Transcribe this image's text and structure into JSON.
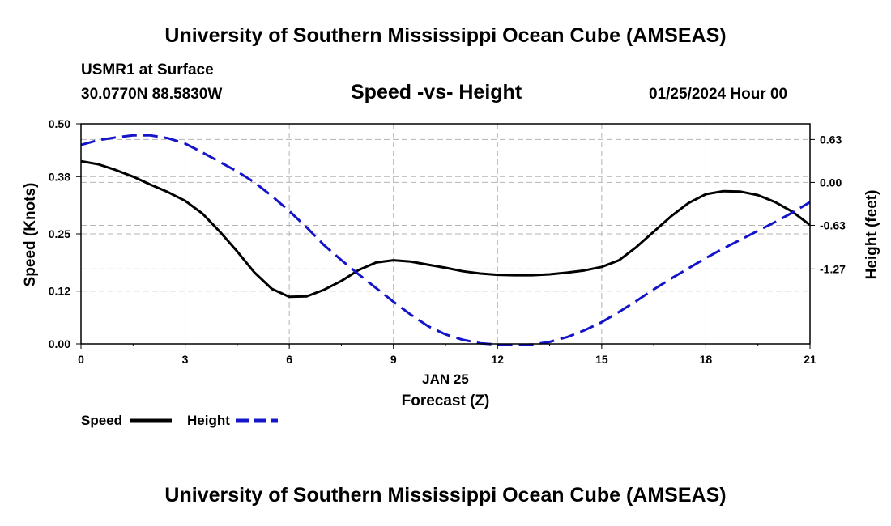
{
  "header": {
    "title": "University of Southern Mississippi Ocean Cube (AMSEAS)",
    "station": "USMR1 at Surface",
    "coords": "30.0770N  88.5830W",
    "subtitle": "Speed -vs- Height",
    "datetime": "01/25/2024 Hour 00"
  },
  "footer": {
    "title": "University of Southern Mississippi Ocean Cube (AMSEAS)"
  },
  "legend": {
    "speed_label": "Speed",
    "height_label": "Height"
  },
  "chart_data": {
    "type": "line",
    "xlabel_date": "JAN 25",
    "xlabel": "Forecast (Z)",
    "ylabel": "Speed (Knots)",
    "y2label": "Height (feet)",
    "xlim": [
      0,
      21
    ],
    "ylim": [
      0,
      0.5
    ],
    "y2lim": [
      -2.37,
      0.86
    ],
    "x_ticks": [
      "0",
      "3",
      "6",
      "9",
      "12",
      "15",
      "18",
      "21"
    ],
    "y_ticks": [
      "0.00",
      "0.12",
      "0.25",
      "0.38",
      "0.50"
    ],
    "y2_ticks": [
      "0.63",
      "0.00",
      "-0.63",
      "-1.27"
    ],
    "y2_tick_values": [
      0.63,
      0.0,
      -0.63,
      -1.27
    ],
    "grid": true,
    "colors": {
      "speed": "#000000",
      "height": "#1414c8",
      "grid": "#b4b4b4"
    },
    "series": [
      {
        "name": "Speed",
        "axis": "left",
        "x": [
          0,
          0.5,
          1,
          1.5,
          2,
          2.5,
          3,
          3.5,
          4,
          4.5,
          5,
          5.5,
          6,
          6.5,
          7,
          7.5,
          8,
          8.5,
          9,
          9.5,
          10,
          10.5,
          11,
          11.5,
          12,
          12.5,
          13,
          13.5,
          14,
          14.5,
          15,
          15.5,
          16,
          16.5,
          17,
          17.5,
          18,
          18.5,
          19,
          19.5,
          20,
          20.5,
          21
        ],
        "values": [
          0.415,
          0.408,
          0.395,
          0.38,
          0.362,
          0.345,
          0.325,
          0.296,
          0.255,
          0.21,
          0.162,
          0.125,
          0.107,
          0.108,
          0.123,
          0.143,
          0.168,
          0.185,
          0.19,
          0.187,
          0.18,
          0.173,
          0.165,
          0.16,
          0.157,
          0.156,
          0.156,
          0.158,
          0.162,
          0.167,
          0.175,
          0.19,
          0.22,
          0.255,
          0.29,
          0.32,
          0.34,
          0.347,
          0.346,
          0.338,
          0.322,
          0.3,
          0.27
        ]
      },
      {
        "name": "Height",
        "axis": "right",
        "x": [
          0,
          0.5,
          1,
          1.5,
          2,
          2.5,
          3,
          3.5,
          4,
          4.5,
          5,
          5.5,
          6,
          6.5,
          7,
          7.5,
          8,
          8.5,
          9,
          9.5,
          10,
          10.5,
          11,
          11.5,
          12,
          12.5,
          13,
          13.5,
          14,
          14.5,
          15,
          15.5,
          16,
          16.5,
          17,
          17.5,
          18,
          18.5,
          19,
          19.5,
          20,
          20.5,
          21
        ],
        "values": [
          0.55,
          0.62,
          0.66,
          0.69,
          0.69,
          0.65,
          0.57,
          0.44,
          0.3,
          0.16,
          0.0,
          -0.2,
          -0.42,
          -0.66,
          -0.92,
          -1.14,
          -1.35,
          -1.55,
          -1.75,
          -1.94,
          -2.11,
          -2.23,
          -2.31,
          -2.36,
          -2.38,
          -2.39,
          -2.38,
          -2.34,
          -2.27,
          -2.17,
          -2.05,
          -1.9,
          -1.74,
          -1.57,
          -1.41,
          -1.26,
          -1.11,
          -0.97,
          -0.84,
          -0.71,
          -0.58,
          -0.44,
          -0.29
        ]
      }
    ]
  }
}
